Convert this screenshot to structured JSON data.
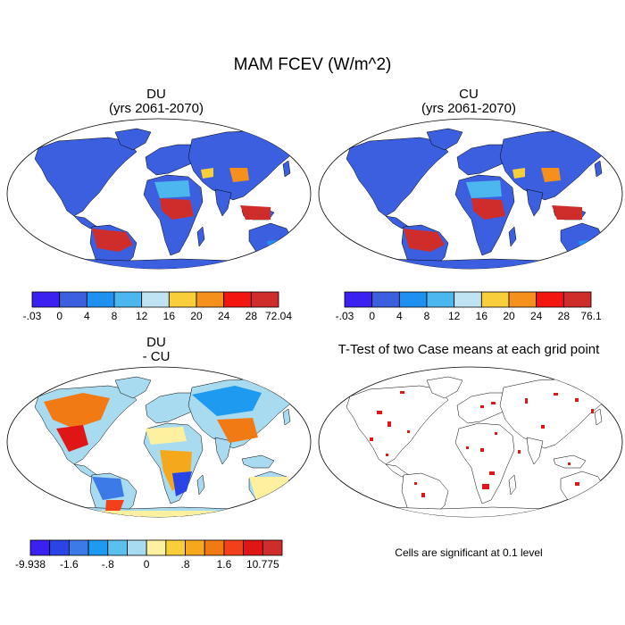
{
  "figure_title": "MAM FCEV (W/m^2)",
  "panels": [
    {
      "id": "du",
      "title_line1": "DU",
      "title_line2": "(yrs 2061-2070)",
      "colorbar": {
        "labels": [
          "-.03",
          "0",
          "4",
          "8",
          "12",
          "16",
          "20",
          "24",
          "28",
          "72.04"
        ],
        "colors": [
          "#3a21f0",
          "#3c5fe0",
          "#1e90f0",
          "#4cb7ee",
          "#bfe3f2",
          "#f8cf3a",
          "#f6901c",
          "#f2160f",
          "#cf2c2c"
        ]
      }
    },
    {
      "id": "cu",
      "title_line1": "CU",
      "title_line2": "(yrs 2061-2070)",
      "colorbar": {
        "labels": [
          "-.03",
          "0",
          "4",
          "8",
          "12",
          "16",
          "20",
          "24",
          "28",
          "76.1"
        ],
        "colors": [
          "#3a21f0",
          "#3c5fe0",
          "#1e90f0",
          "#4cb7ee",
          "#bfe3f2",
          "#f8cf3a",
          "#f6901c",
          "#f2160f",
          "#cf2c2c"
        ]
      }
    },
    {
      "id": "diff",
      "title_line1": "DU",
      "title_line2": "- CU",
      "colorbar": {
        "labels": [
          "-9.938",
          "",
          "-1.6",
          "",
          "-.8",
          "",
          "0",
          "",
          ".8",
          "",
          "1.6",
          "",
          "10.775"
        ],
        "colors": [
          "#3a21f0",
          "#2a45e6",
          "#3c7ae8",
          "#1e9af0",
          "#5cc0ee",
          "#a8daf0",
          "#fdf1a0",
          "#f8cf3a",
          "#f6a81c",
          "#f27a14",
          "#f2401a",
          "#e01515",
          "#cf2c2c"
        ]
      }
    },
    {
      "id": "ttest",
      "title": "T-Test of two Case means at each grid point",
      "note": "Cells are significant at 0.1 level"
    }
  ]
}
